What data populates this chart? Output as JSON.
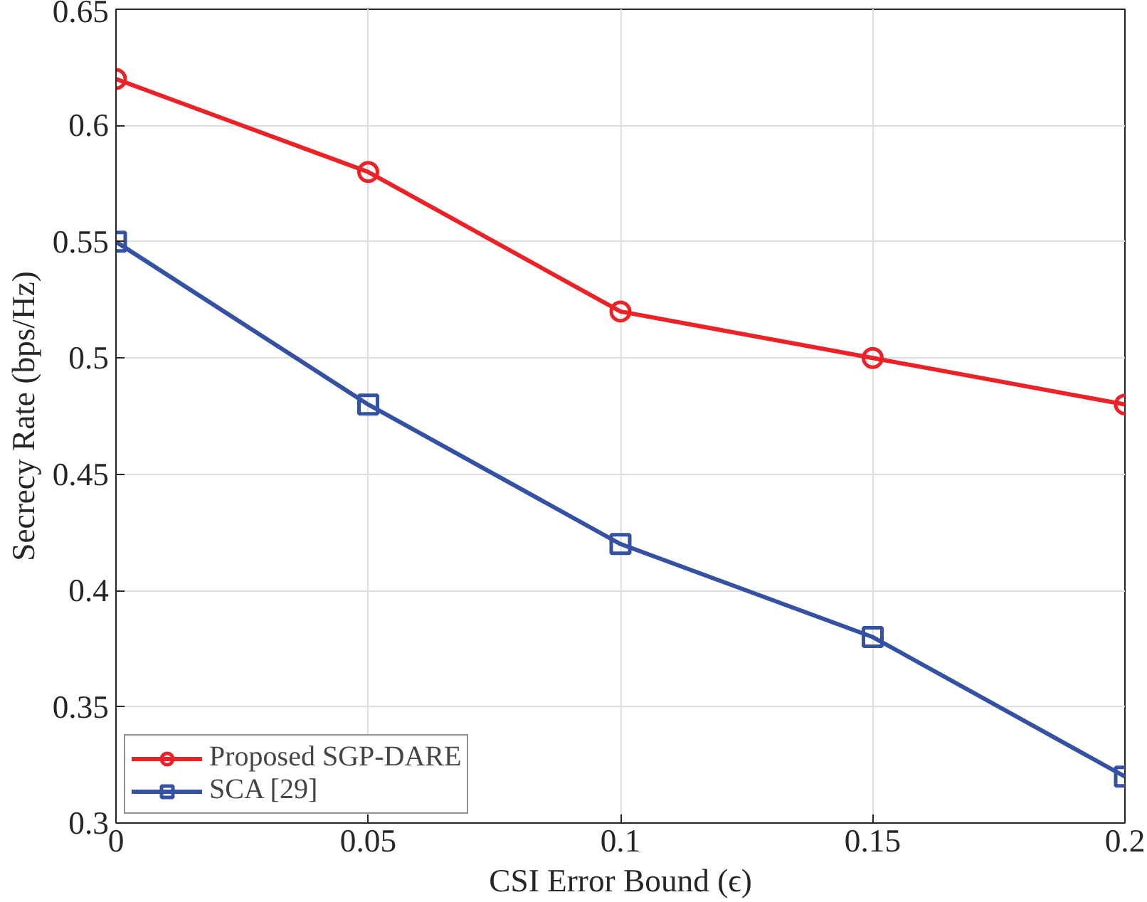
{
  "chart_data": {
    "type": "line",
    "xlabel": "CSI Error Bound (ϵ)",
    "ylabel": "Secrecy Rate (bps/Hz)",
    "x": [
      0,
      0.05,
      0.1,
      0.15,
      0.2
    ],
    "series": [
      {
        "name": "Proposed SGP-DARE",
        "color": "#ec2227",
        "marker": "circle",
        "values": [
          0.62,
          0.58,
          0.52,
          0.5,
          0.48
        ]
      },
      {
        "name": "SCA [29]",
        "color": "#3451a3",
        "marker": "square",
        "values": [
          0.55,
          0.48,
          0.42,
          0.38,
          0.32
        ]
      }
    ],
    "xlim": [
      0,
      0.2
    ],
    "xticks": [
      0,
      0.05,
      0.1,
      0.15,
      0.2
    ],
    "ylim": [
      0.3,
      0.65
    ],
    "yticks": [
      0.3,
      0.35,
      0.4,
      0.45,
      0.5,
      0.55,
      0.6,
      0.65
    ],
    "grid": true,
    "legend": "bottom left",
    "line_style": "solid"
  }
}
